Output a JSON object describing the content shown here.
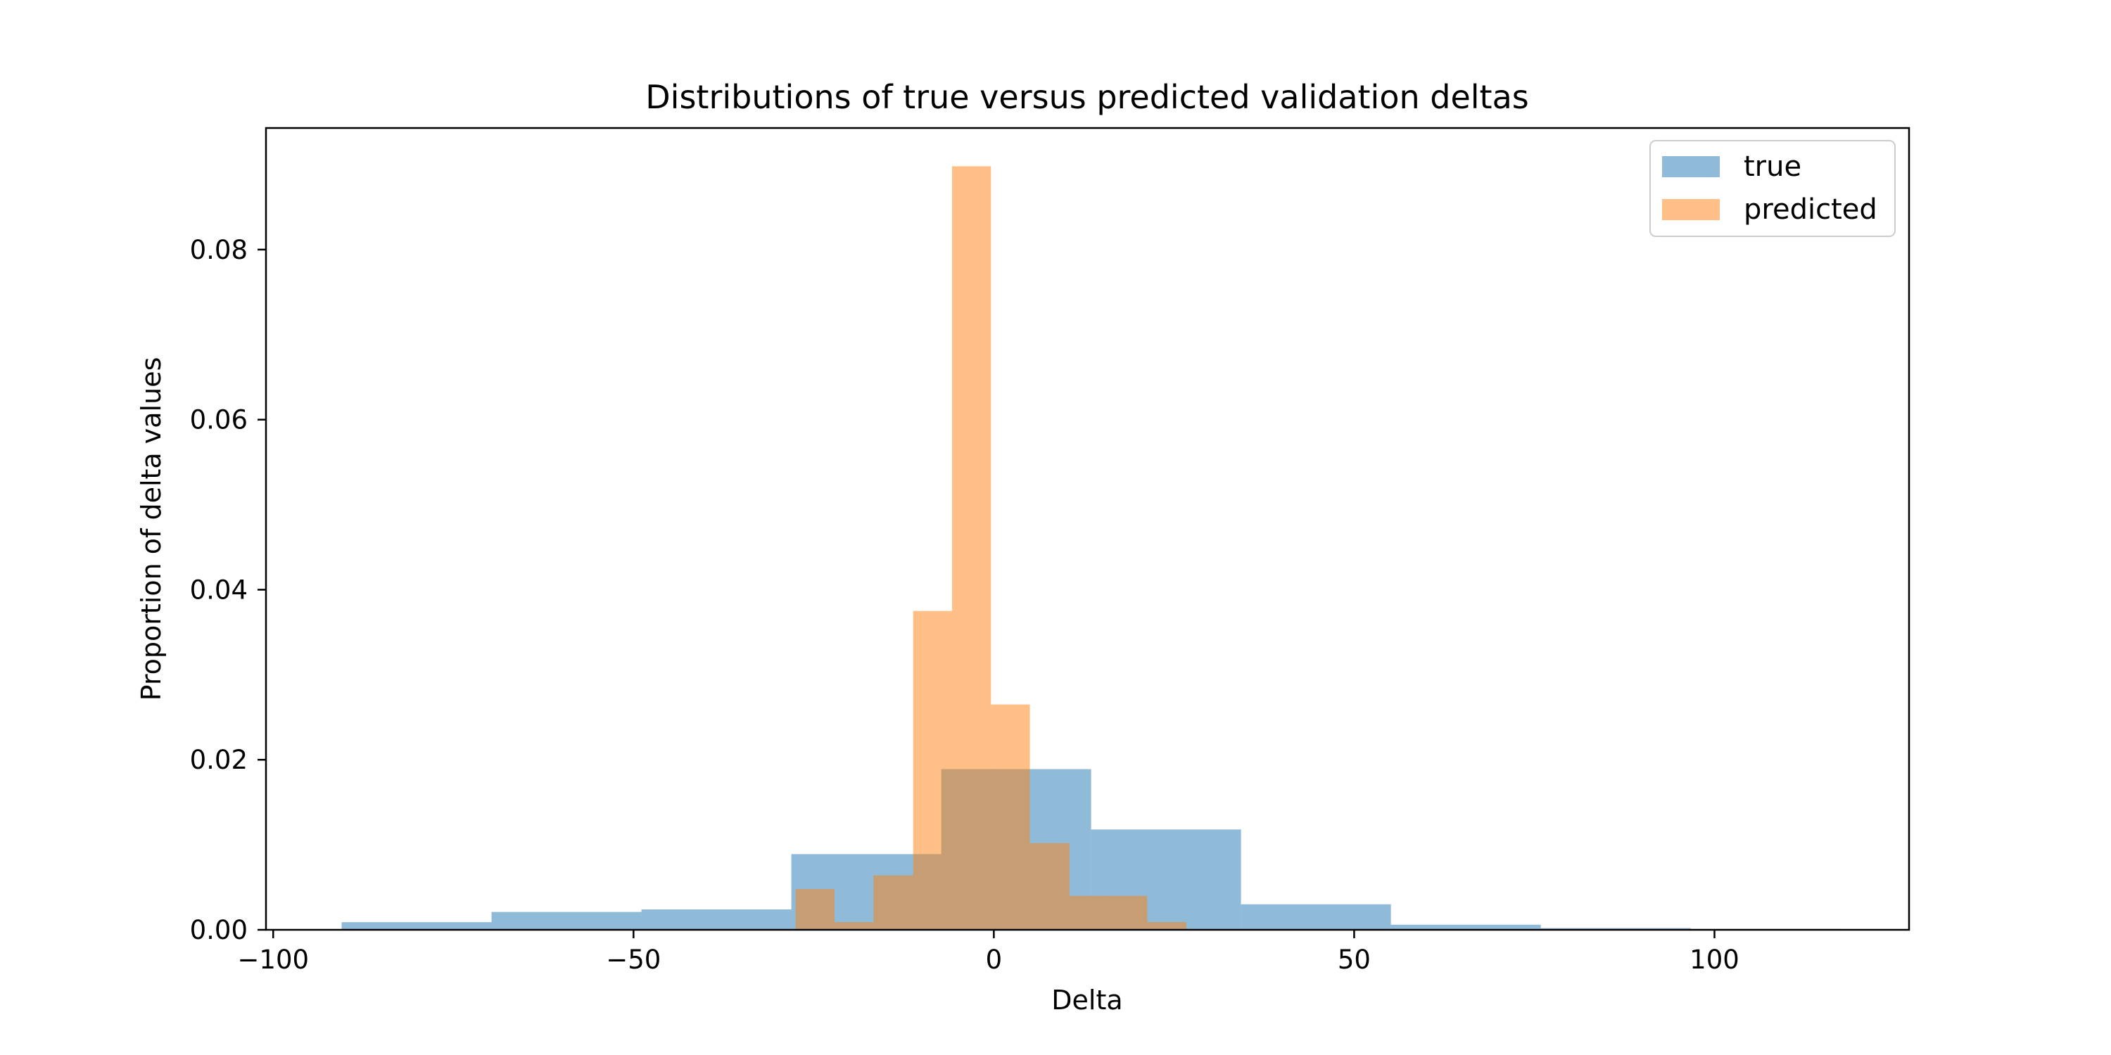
{
  "chart_data": {
    "type": "bar",
    "histogram": true,
    "title": "Distributions of true versus predicted validation deltas",
    "xlabel": "Delta",
    "ylabel": "Proportion of delta values",
    "xlim": [
      -101,
      127
    ],
    "ylim": [
      0,
      0.0943
    ],
    "xticks": [
      -100,
      -50,
      0,
      50,
      100
    ],
    "yticks": [
      0.0,
      0.02,
      0.04,
      0.06,
      0.08
    ],
    "xtick_labels": [
      "−100",
      "−50",
      "0",
      "50",
      "100"
    ],
    "ytick_labels": [
      "0.00",
      "0.02",
      "0.04",
      "0.06",
      "0.08"
    ],
    "grid": false,
    "legend_position": "top-right",
    "series": [
      {
        "name": "true",
        "color": "#1f77b4",
        "opacity": 0.5,
        "bin_edges": [
          -90.5,
          -69.7,
          -48.9,
          -28.1,
          -7.3,
          13.5,
          34.3,
          55.1,
          75.9,
          96.7,
          117.5
        ],
        "values": [
          0.0009,
          0.0021,
          0.0024,
          0.0089,
          0.0189,
          0.0118,
          0.003,
          0.0006,
          0.0002,
          0.0001
        ]
      },
      {
        "name": "predicted",
        "color": "#ff7f0e",
        "opacity": 0.5,
        "bin_edges": [
          -27.5,
          -22.1,
          -16.7,
          -11.2,
          -5.8,
          -0.4,
          5.0,
          10.5,
          15.9,
          21.3,
          26.7
        ],
        "values": [
          0.0048,
          0.0009,
          0.0064,
          0.0375,
          0.0898,
          0.0265,
          0.0102,
          0.004,
          0.004,
          0.0009
        ]
      }
    ]
  }
}
